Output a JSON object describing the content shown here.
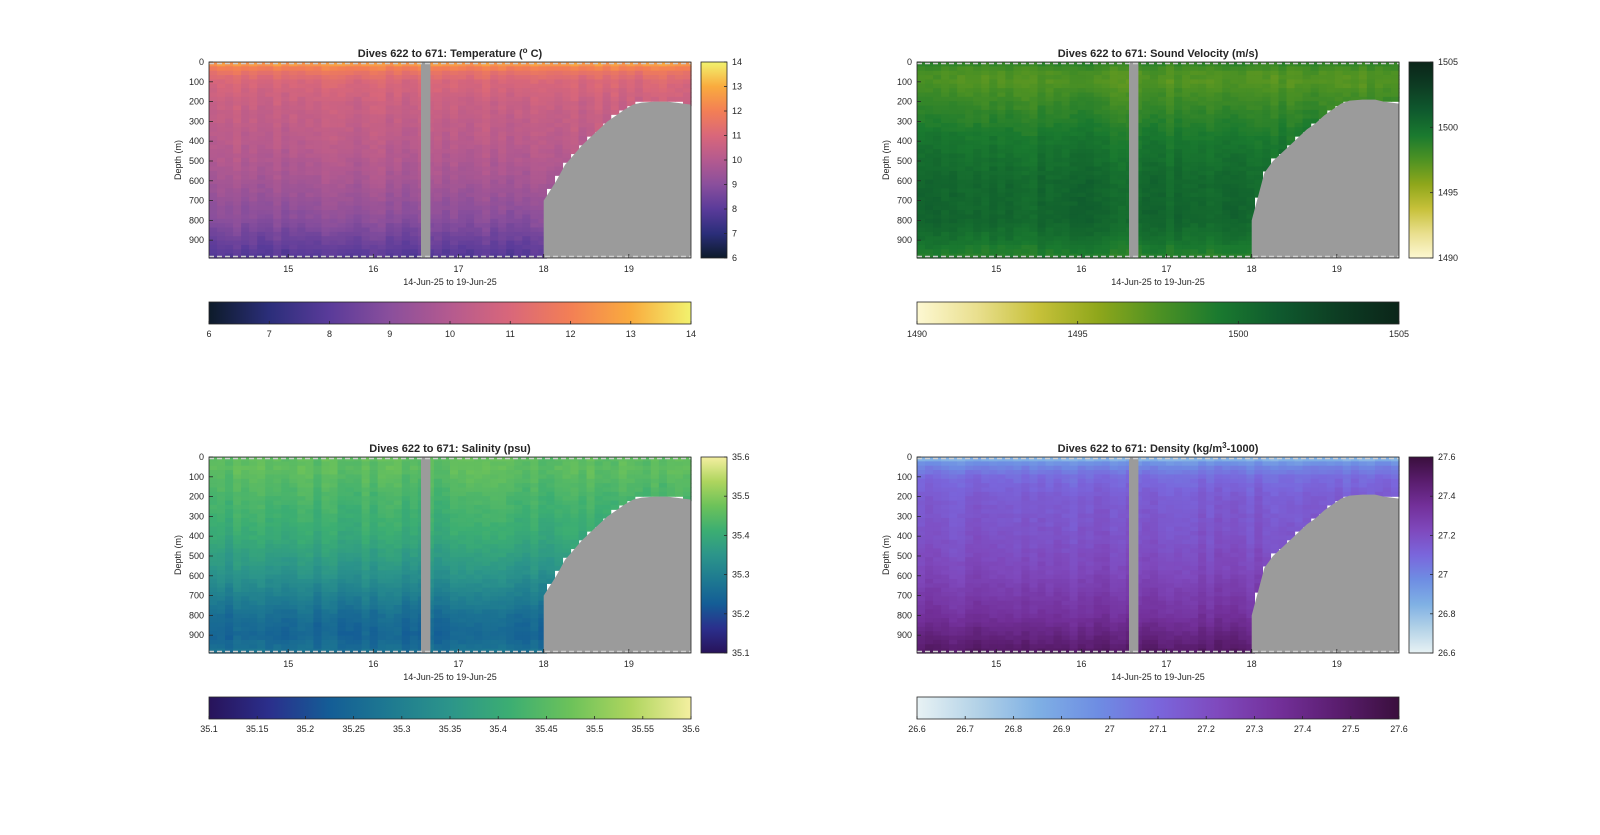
{
  "figure": {
    "background": "#ffffff"
  },
  "chart_data": [
    {
      "type": "heatmap",
      "title": "Dives 622 to 671: Temperature (° C)",
      "title_main": "Dives 622 to 671: Temperature (",
      "title_sup": "o",
      "title_tail": " C)",
      "xlabel": "14-Jun-25 to 19-Jun-25",
      "ylabel": "Depth (m)",
      "x_range": [
        14.07,
        19.73
      ],
      "y_range": [
        0,
        990
      ],
      "x_ticks": [
        15,
        16,
        17,
        18,
        19
      ],
      "x_tick_labels": [
        "15",
        "16",
        "17",
        "18",
        "19"
      ],
      "y_ticks": [
        0,
        100,
        200,
        300,
        400,
        500,
        600,
        700,
        800,
        900
      ],
      "y_tick_labels": [
        "0",
        "100",
        "200",
        "300",
        "400",
        "500",
        "600",
        "700",
        "800",
        "900"
      ],
      "clim": [
        6,
        14
      ],
      "colormap": [
        "#0d1b2a",
        "#2b2e7a",
        "#5a3b9a",
        "#8a4f9c",
        "#b45a8f",
        "#d9677a",
        "#f37f55",
        "#f9ab3e",
        "#f2f26e"
      ],
      "colorbar_v_ticks": [
        "6",
        "7",
        "8",
        "9",
        "10",
        "11",
        "12",
        "13",
        "14"
      ],
      "colorbar_h_ticks": [
        "6",
        "7",
        "8",
        "9",
        "10",
        "11",
        "12",
        "13",
        "14"
      ],
      "colorbar_reversed": false,
      "gap_x": [
        16.56,
        16.67
      ],
      "seafloor_depth": [
        [
          18.0,
          700
        ],
        [
          18.15,
          600
        ],
        [
          18.25,
          520
        ],
        [
          18.35,
          470
        ],
        [
          18.45,
          420
        ],
        [
          18.55,
          380
        ],
        [
          18.65,
          340
        ],
        [
          18.75,
          300
        ],
        [
          18.85,
          270
        ],
        [
          18.95,
          240
        ],
        [
          19.05,
          215
        ],
        [
          19.15,
          205
        ],
        [
          19.3,
          200
        ],
        [
          19.45,
          200
        ],
        [
          19.55,
          205
        ],
        [
          19.73,
          215
        ]
      ],
      "profile": {
        "depth": [
          0,
          20,
          50,
          100,
          200,
          400,
          600,
          800,
          900,
          990
        ],
        "value": [
          12.9,
          12.3,
          11.6,
          11.0,
          10.6,
          10.2,
          9.7,
          9.0,
          8.4,
          7.9
        ]
      }
    },
    {
      "type": "heatmap",
      "title": "Dives 622 to 671: Sound Velocity (m/s)",
      "title_main": "Dives 622 to 671: Sound Velocity (m/s)",
      "title_sup": "",
      "title_tail": "",
      "xlabel": "14-Jun-25 to 19-Jun-25",
      "ylabel": "Depth (m)",
      "x_range": [
        14.07,
        19.73
      ],
      "y_range": [
        0,
        990
      ],
      "x_ticks": [
        15,
        16,
        17,
        18,
        19
      ],
      "x_tick_labels": [
        "15",
        "16",
        "17",
        "18",
        "19"
      ],
      "y_ticks": [
        0,
        100,
        200,
        300,
        400,
        500,
        600,
        700,
        800,
        900
      ],
      "y_tick_labels": [
        "0",
        "100",
        "200",
        "300",
        "400",
        "500",
        "600",
        "700",
        "800",
        "900"
      ],
      "clim": [
        1490,
        1505
      ],
      "colormap": [
        "#fdf8d2",
        "#e9df8e",
        "#c7c13a",
        "#8fa71b",
        "#4e9223",
        "#1a7a2f",
        "#0f5a2e",
        "#0d3d23",
        "#0b2519"
      ],
      "colorbar_v_ticks": [
        "1490",
        "1495",
        "1500",
        "1505"
      ],
      "colorbar_v_values": [
        1490,
        1495,
        1500,
        1505
      ],
      "colorbar_h_ticks": [
        "1490",
        "1495",
        "1500",
        "1505"
      ],
      "colorbar_h_values": [
        1490,
        1495,
        1500,
        1505
      ],
      "gap_x": [
        16.56,
        16.67
      ],
      "seafloor_depth": [
        [
          18.0,
          800
        ],
        [
          18.15,
          560
        ],
        [
          18.25,
          500
        ],
        [
          18.35,
          460
        ],
        [
          18.45,
          420
        ],
        [
          18.55,
          380
        ],
        [
          18.65,
          340
        ],
        [
          18.75,
          310
        ],
        [
          18.85,
          270
        ],
        [
          18.95,
          240
        ],
        [
          19.05,
          210
        ],
        [
          19.15,
          195
        ],
        [
          19.3,
          190
        ],
        [
          19.45,
          190
        ],
        [
          19.55,
          200
        ],
        [
          19.73,
          210
        ]
      ],
      "profile": {
        "depth": [
          0,
          20,
          50,
          100,
          200,
          400,
          600,
          800,
          900,
          990
        ],
        "value": [
          1498.8,
          1498.2,
          1497.6,
          1497.4,
          1498.2,
          1499.6,
          1500.4,
          1500.6,
          1499.8,
          1498.8
        ]
      }
    },
    {
      "type": "heatmap",
      "title": "Dives 622 to 671: Salinity (psu)",
      "title_main": "Dives 622 to 671: Salinity (psu)",
      "title_sup": "",
      "title_tail": "",
      "xlabel": "14-Jun-25 to 19-Jun-25",
      "ylabel": "Depth (m)",
      "x_range": [
        14.07,
        19.73
      ],
      "y_range": [
        0,
        990
      ],
      "x_ticks": [
        15,
        16,
        17,
        18,
        19
      ],
      "x_tick_labels": [
        "15",
        "16",
        "17",
        "18",
        "19"
      ],
      "y_ticks": [
        0,
        100,
        200,
        300,
        400,
        500,
        600,
        700,
        800,
        900
      ],
      "y_tick_labels": [
        "0",
        "100",
        "200",
        "300",
        "400",
        "500",
        "600",
        "700",
        "800",
        "900"
      ],
      "clim": [
        35.1,
        35.6
      ],
      "colormap": [
        "#28135a",
        "#2b2f8c",
        "#145d96",
        "#1e7a91",
        "#2c958a",
        "#3cae72",
        "#6cc25a",
        "#aed55e",
        "#f4efa0"
      ],
      "colorbar_v_ticks": [
        "35.1",
        "35.2",
        "35.3",
        "35.4",
        "35.5",
        "35.6"
      ],
      "colorbar_v_values": [
        35.1,
        35.2,
        35.3,
        35.4,
        35.5,
        35.6
      ],
      "colorbar_h_ticks": [
        "35.1",
        "35.15",
        "35.2",
        "35.25",
        "35.3",
        "35.35",
        "35.4",
        "35.45",
        "35.5",
        "35.55",
        "35.6"
      ],
      "colorbar_h_values": [
        35.1,
        35.15,
        35.2,
        35.25,
        35.3,
        35.35,
        35.4,
        35.45,
        35.5,
        35.55,
        35.6
      ],
      "gap_x": [
        16.56,
        16.67
      ],
      "seafloor_depth": [
        [
          18.0,
          700
        ],
        [
          18.15,
          600
        ],
        [
          18.25,
          520
        ],
        [
          18.35,
          470
        ],
        [
          18.45,
          420
        ],
        [
          18.55,
          380
        ],
        [
          18.65,
          340
        ],
        [
          18.75,
          300
        ],
        [
          18.85,
          270
        ],
        [
          18.95,
          240
        ],
        [
          19.05,
          215
        ],
        [
          19.15,
          205
        ],
        [
          19.3,
          200
        ],
        [
          19.45,
          200
        ],
        [
          19.55,
          205
        ],
        [
          19.73,
          215
        ]
      ],
      "profile": {
        "depth": [
          0,
          20,
          50,
          100,
          200,
          400,
          600,
          800,
          900,
          990
        ],
        "value": [
          35.47,
          35.45,
          35.46,
          35.45,
          35.43,
          35.4,
          35.34,
          35.26,
          35.24,
          35.27
        ]
      }
    },
    {
      "type": "heatmap",
      "title": "Dives 622 to 671: Density (kg/m³-1000)",
      "title_main": "Dives 622 to 671: Density (kg/m",
      "title_sup": "3",
      "title_tail": "-1000)",
      "xlabel": "14-Jun-25 to 19-Jun-25",
      "ylabel": "Depth (m)",
      "x_range": [
        14.07,
        19.73
      ],
      "y_range": [
        0,
        990
      ],
      "x_ticks": [
        15,
        16,
        17,
        18,
        19
      ],
      "x_tick_labels": [
        "15",
        "16",
        "17",
        "18",
        "19"
      ],
      "y_ticks": [
        0,
        100,
        200,
        300,
        400,
        500,
        600,
        700,
        800,
        900
      ],
      "y_tick_labels": [
        "0",
        "100",
        "200",
        "300",
        "400",
        "500",
        "600",
        "700",
        "800",
        "900"
      ],
      "clim": [
        26.6,
        27.6
      ],
      "colormap": [
        "#e8f2f4",
        "#b3d2e7",
        "#7fb0e4",
        "#6e8de3",
        "#7a66dc",
        "#7f49bd",
        "#73309a",
        "#5a1d6e",
        "#3a0f3d"
      ],
      "colorbar_v_ticks": [
        "26.6",
        "26.8",
        "27",
        "27.2",
        "27.4",
        "27.6"
      ],
      "colorbar_v_values": [
        26.6,
        26.8,
        27.0,
        27.2,
        27.4,
        27.6
      ],
      "colorbar_h_ticks": [
        "26.6",
        "26.7",
        "26.8",
        "26.9",
        "27",
        "27.1",
        "27.2",
        "27.3",
        "27.4",
        "27.5",
        "27.6"
      ],
      "colorbar_h_values": [
        26.6,
        26.7,
        26.8,
        26.9,
        27.0,
        27.1,
        27.2,
        27.3,
        27.4,
        27.5,
        27.6
      ],
      "gap_x": [
        16.56,
        16.67
      ],
      "seafloor_depth": [
        [
          18.0,
          800
        ],
        [
          18.15,
          560
        ],
        [
          18.25,
          500
        ],
        [
          18.35,
          460
        ],
        [
          18.45,
          420
        ],
        [
          18.55,
          380
        ],
        [
          18.65,
          340
        ],
        [
          18.75,
          310
        ],
        [
          18.85,
          270
        ],
        [
          18.95,
          240
        ],
        [
          19.05,
          210
        ],
        [
          19.15,
          195
        ],
        [
          19.3,
          190
        ],
        [
          19.45,
          190
        ],
        [
          19.55,
          200
        ],
        [
          19.73,
          210
        ]
      ],
      "profile": {
        "depth": [
          0,
          20,
          50,
          100,
          200,
          400,
          600,
          800,
          900,
          990
        ],
        "value": [
          26.75,
          26.92,
          27.0,
          27.08,
          27.14,
          27.18,
          27.24,
          27.34,
          27.42,
          27.5
        ]
      }
    }
  ]
}
